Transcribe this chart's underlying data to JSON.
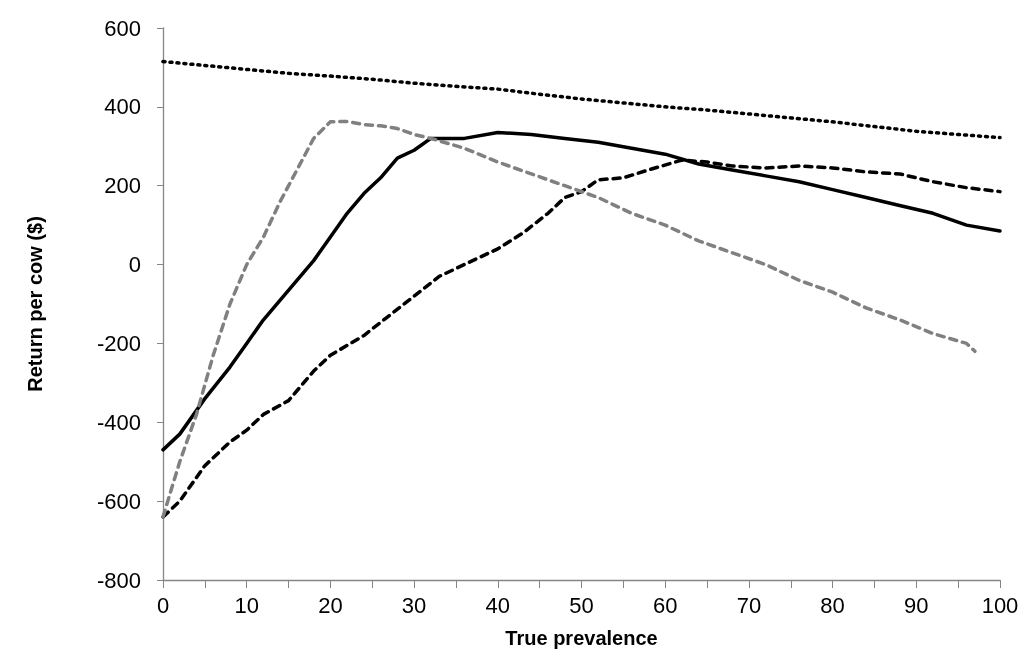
{
  "chart_data": {
    "type": "line",
    "xlabel": "True prevalence",
    "ylabel": "Return per cow ($)",
    "xlim": [
      0,
      100
    ],
    "ylim": [
      -800,
      600
    ],
    "xticks": [
      0,
      {
        "value": 5,
        "label": null
      },
      10,
      {
        "value": 15,
        "label": null
      },
      20,
      {
        "value": 25,
        "label": null
      },
      30,
      {
        "value": 35,
        "label": null
      },
      40,
      {
        "value": 45,
        "label": null
      },
      50,
      {
        "value": 55,
        "label": null
      },
      60,
      {
        "value": 65,
        "label": null
      },
      70,
      {
        "value": 75,
        "label": null
      },
      80,
      {
        "value": 85,
        "label": null
      },
      90,
      {
        "value": 95,
        "label": null
      },
      100
    ],
    "yticks": [
      -800,
      -600,
      -400,
      -200,
      0,
      200,
      400,
      600
    ],
    "grid": false,
    "marker": "none",
    "series": [
      {
        "color": "#000000",
        "line_style": "dotted",
        "x": [
          0,
          5,
          10,
          15,
          20,
          25,
          30,
          35,
          40,
          45,
          50,
          55,
          60,
          65,
          70,
          75,
          80,
          85,
          90,
          95,
          100
        ],
        "values": [
          515,
          505,
          495,
          485,
          478,
          470,
          460,
          452,
          445,
          432,
          420,
          410,
          400,
          392,
          382,
          372,
          362,
          350,
          338,
          330,
          322
        ]
      },
      {
        "color": "#000000",
        "line_style": "solid",
        "x": [
          0,
          2,
          5,
          8,
          10,
          12,
          14,
          16,
          18,
          20,
          22,
          24,
          26,
          28,
          30,
          32,
          36,
          40,
          44,
          48,
          52,
          56,
          60,
          64,
          68,
          72,
          76,
          80,
          84,
          88,
          92,
          96,
          100
        ],
        "values": [
          -470,
          -430,
          -340,
          -260,
          -200,
          -140,
          -90,
          -40,
          10,
          70,
          130,
          180,
          220,
          270,
          290,
          320,
          320,
          335,
          330,
          320,
          310,
          295,
          280,
          255,
          240,
          225,
          210,
          190,
          170,
          150,
          130,
          100,
          85
        ]
      },
      {
        "color": "#000000",
        "line_style": "dashed",
        "x": [
          0,
          2,
          5,
          8,
          10,
          12,
          15,
          18,
          20,
          24,
          27,
          30,
          33,
          36,
          40,
          43,
          46,
          48,
          50,
          52,
          55,
          58,
          62,
          65,
          68,
          72,
          76,
          80,
          84,
          88,
          92,
          96,
          100
        ],
        "values": [
          -640,
          -600,
          -510,
          -450,
          -420,
          -380,
          -345,
          -270,
          -230,
          -180,
          -130,
          -80,
          -30,
          0,
          40,
          80,
          130,
          170,
          185,
          215,
          220,
          240,
          265,
          260,
          250,
          245,
          250,
          245,
          235,
          230,
          210,
          195,
          185
        ]
      },
      {
        "color": "#808080",
        "line_style": "dashed",
        "x": [
          0,
          2,
          4,
          6,
          8,
          10,
          12,
          14,
          16,
          18,
          20,
          22,
          24,
          26,
          28,
          30,
          32,
          36,
          40,
          44,
          48,
          52,
          56,
          60,
          64,
          68,
          72,
          76,
          80,
          84,
          88,
          92,
          96,
          97
        ],
        "values": [
          -640,
          -500,
          -380,
          -230,
          -100,
          0,
          70,
          160,
          240,
          320,
          362,
          363,
          355,
          352,
          345,
          330,
          320,
          295,
          260,
          230,
          200,
          170,
          130,
          100,
          60,
          30,
          0,
          -40,
          -70,
          -110,
          -140,
          -175,
          -200,
          -220
        ]
      }
    ]
  }
}
